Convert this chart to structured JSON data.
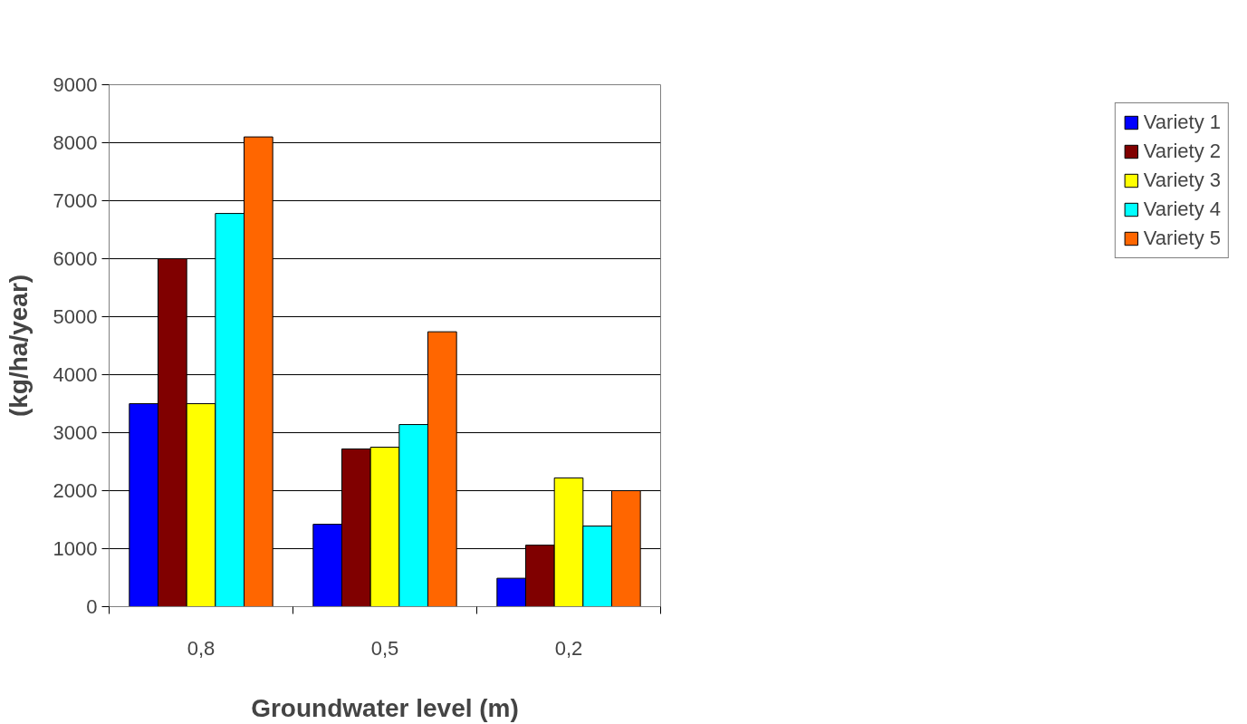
{
  "chart_data": {
    "type": "bar",
    "xlabel": "Groundwater level (m)",
    "ylabel": "(kg/ha/year)",
    "categories": [
      "0,8",
      "0,5",
      "0,2"
    ],
    "series": [
      {
        "name": "Variety 1",
        "color": "#0000ff",
        "values": [
          3500,
          1420,
          490
        ]
      },
      {
        "name": "Variety 2",
        "color": "#800000",
        "values": [
          6000,
          2720,
          1060
        ]
      },
      {
        "name": "Variety 3",
        "color": "#ffff00",
        "values": [
          3500,
          2750,
          2220
        ]
      },
      {
        "name": "Variety 4",
        "color": "#00ffff",
        "values": [
          6780,
          3140,
          1390
        ]
      },
      {
        "name": "Variety 5",
        "color": "#ff6600",
        "values": [
          8100,
          4740,
          2000
        ]
      }
    ],
    "ylim": [
      0,
      9000
    ],
    "yticks": [
      0,
      1000,
      2000,
      3000,
      4000,
      5000,
      6000,
      7000,
      8000,
      9000
    ],
    "grid": "y",
    "legend": "right"
  }
}
